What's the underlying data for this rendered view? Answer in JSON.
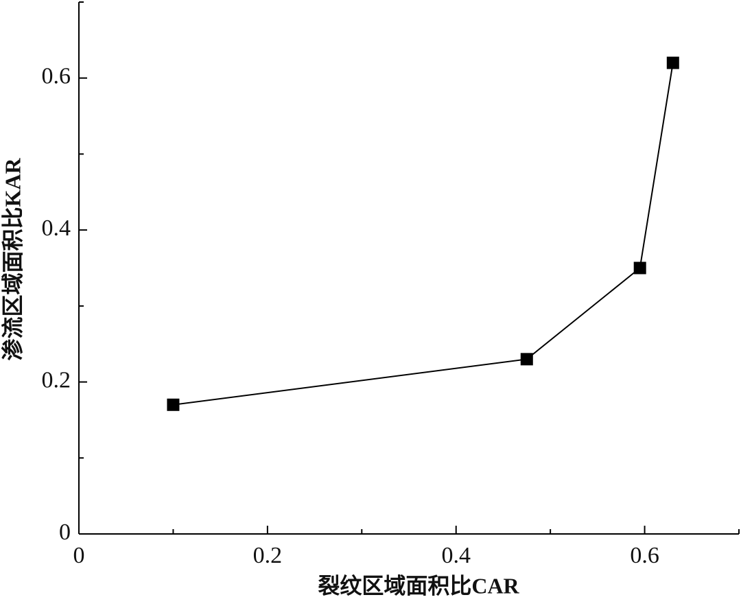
{
  "chart_data": {
    "type": "line",
    "x_label": "裂纹区域面积比CAR",
    "y_label": "渗流区域面积比KAR",
    "x": [
      0.1,
      0.475,
      0.595,
      0.63
    ],
    "series": [
      {
        "color": "#000000",
        "values": [
          0.17,
          0.23,
          0.35,
          0.62
        ]
      }
    ],
    "xlim": [
      0,
      0.7
    ],
    "ylim": [
      0,
      0.7
    ],
    "xticks": [
      0,
      0.2,
      0.4,
      0.6
    ],
    "yticks": [
      0,
      0.2,
      0.4,
      0.6
    ],
    "xticks_minor": [
      0.1,
      0.3,
      0.5,
      0.7
    ],
    "yticks_minor": [
      0.1,
      0.3,
      0.5,
      0.7
    ],
    "grid": false,
    "marker": "square"
  }
}
